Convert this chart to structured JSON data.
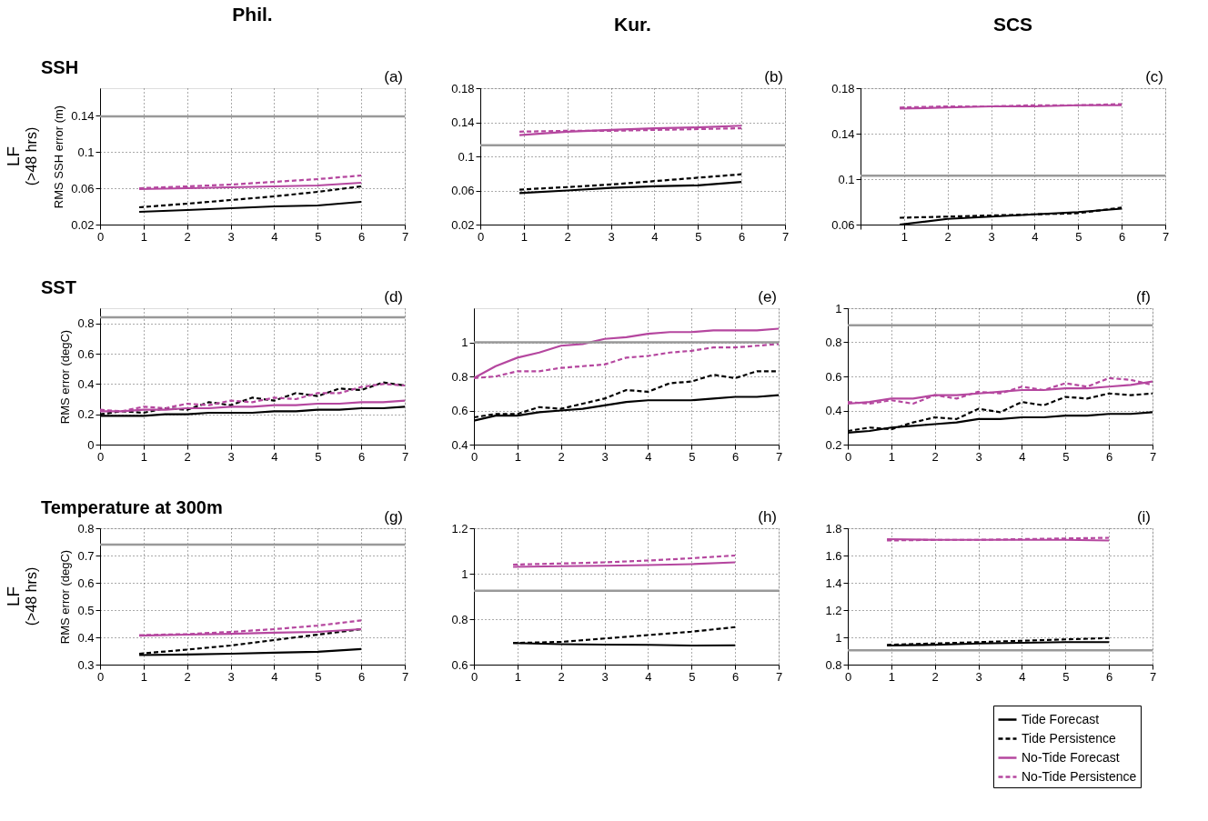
{
  "chart_data": [
    {
      "type": "line",
      "title": "Phil.",
      "subtitle": "SSH",
      "ylabel": "RMS SSH error (m)",
      "annotations": [
        "(a)",
        "LF",
        "(>48 hrs)"
      ],
      "x": [
        0.9,
        2,
        3,
        4,
        5,
        6
      ],
      "xlim": [
        0,
        7
      ],
      "xticks": [
        0,
        1,
        2,
        3,
        4,
        5,
        6,
        7
      ],
      "ylim": [
        0.02,
        0.17
      ],
      "yticks": [
        0.02,
        0.06,
        0.1,
        0.14
      ],
      "grid": true,
      "ref_lines": [
        {
          "axis": "y",
          "value": 0.139,
          "color": "#999999"
        }
      ],
      "series": [
        {
          "color": "#000000",
          "line_style": "solid",
          "values": [
            0.034,
            0.036,
            0.038,
            0.04,
            0.041,
            0.045
          ]
        },
        {
          "color": "#000000",
          "line_style": "dashed",
          "values": [
            0.039,
            0.043,
            0.047,
            0.051,
            0.056,
            0.062
          ]
        },
        {
          "color": "#b5479f",
          "line_style": "solid",
          "values": [
            0.059,
            0.06,
            0.061,
            0.062,
            0.063,
            0.066
          ]
        },
        {
          "color": "#b5479f",
          "line_style": "dashed",
          "values": [
            0.06,
            0.062,
            0.064,
            0.067,
            0.07,
            0.074
          ]
        }
      ]
    },
    {
      "type": "line",
      "title": "Kur.",
      "annotations": [
        "(b)"
      ],
      "x": [
        0.9,
        2,
        3,
        4,
        5,
        6
      ],
      "xlim": [
        0,
        7
      ],
      "xticks": [
        0,
        1,
        2,
        3,
        4,
        5,
        6,
        7
      ],
      "ylim": [
        0.02,
        0.18
      ],
      "yticks": [
        0.02,
        0.06,
        0.1,
        0.14,
        0.18
      ],
      "grid": true,
      "ref_lines": [
        {
          "axis": "y",
          "value": 0.113,
          "color": "#999999"
        }
      ],
      "series": [
        {
          "color": "#000000",
          "line_style": "solid",
          "values": [
            0.057,
            0.06,
            0.063,
            0.065,
            0.066,
            0.07
          ]
        },
        {
          "color": "#000000",
          "line_style": "dashed",
          "values": [
            0.061,
            0.064,
            0.067,
            0.071,
            0.075,
            0.079
          ]
        },
        {
          "color": "#b5479f",
          "line_style": "solid",
          "values": [
            0.125,
            0.129,
            0.131,
            0.133,
            0.134,
            0.136
          ]
        },
        {
          "color": "#b5479f",
          "line_style": "dashed",
          "values": [
            0.129,
            0.13,
            0.13,
            0.131,
            0.132,
            0.133
          ]
        }
      ]
    },
    {
      "type": "line",
      "title": "SCS",
      "annotations": [
        "(c)"
      ],
      "x": [
        0.9,
        2,
        3,
        4,
        5,
        6
      ],
      "xlim": [
        0,
        7
      ],
      "xticks": [
        {
          "value": 0,
          "label": null
        },
        1,
        2,
        3,
        4,
        5,
        6,
        7
      ],
      "ylim": [
        0.06,
        0.18
      ],
      "yticks": [
        0.06,
        0.1,
        0.14,
        0.18
      ],
      "grid": true,
      "ref_lines": [
        {
          "axis": "y",
          "value": 0.103,
          "color": "#999999"
        }
      ],
      "series": [
        {
          "color": "#000000",
          "line_style": "solid",
          "values": [
            0.06,
            0.065,
            0.067,
            0.069,
            0.071,
            0.074
          ]
        },
        {
          "color": "#000000",
          "line_style": "dashed",
          "values": [
            0.066,
            0.067,
            0.068,
            0.069,
            0.07,
            0.075
          ]
        },
        {
          "color": "#b5479f",
          "line_style": "solid",
          "values": [
            0.162,
            0.163,
            0.164,
            0.164,
            0.165,
            0.165
          ]
        },
        {
          "color": "#b5479f",
          "line_style": "dashed",
          "values": [
            0.163,
            0.164,
            0.164,
            0.165,
            0.165,
            0.166
          ]
        }
      ]
    },
    {
      "type": "line",
      "subtitle": "SST",
      "ylabel": "RMS error (degC)",
      "annotations": [
        "(d)"
      ],
      "x": [
        0,
        0.5,
        1,
        1.5,
        2,
        2.5,
        3,
        3.5,
        4,
        4.5,
        5,
        5.5,
        6,
        6.5,
        7
      ],
      "xlim": [
        0,
        7
      ],
      "xticks": [
        0,
        1,
        2,
        3,
        4,
        5,
        6,
        7
      ],
      "ylim": [
        0,
        0.9
      ],
      "yticks": [
        0,
        0.2,
        0.4,
        0.6,
        0.8
      ],
      "grid": true,
      "ref_lines": [
        {
          "axis": "y",
          "value": 0.84,
          "color": "#999999"
        }
      ],
      "series": [
        {
          "color": "#000000",
          "line_style": "solid",
          "values": [
            0.19,
            0.19,
            0.19,
            0.2,
            0.2,
            0.21,
            0.21,
            0.21,
            0.22,
            0.22,
            0.23,
            0.23,
            0.24,
            0.24,
            0.25
          ]
        },
        {
          "color": "#000000",
          "line_style": "dashed",
          "values": [
            0.2,
            0.22,
            0.21,
            0.24,
            0.23,
            0.28,
            0.26,
            0.31,
            0.29,
            0.34,
            0.32,
            0.37,
            0.36,
            0.41,
            0.39
          ]
        },
        {
          "color": "#b5479f",
          "line_style": "solid",
          "values": [
            0.22,
            0.22,
            0.23,
            0.23,
            0.24,
            0.24,
            0.25,
            0.25,
            0.26,
            0.26,
            0.27,
            0.27,
            0.28,
            0.28,
            0.29
          ]
        },
        {
          "color": "#b5479f",
          "line_style": "dashed",
          "values": [
            0.23,
            0.22,
            0.25,
            0.24,
            0.27,
            0.26,
            0.29,
            0.28,
            0.31,
            0.3,
            0.34,
            0.34,
            0.38,
            0.4,
            0.39
          ]
        }
      ]
    },
    {
      "type": "line",
      "annotations": [
        "(e)"
      ],
      "x": [
        0,
        0.5,
        1,
        1.5,
        2,
        2.5,
        3,
        3.5,
        4,
        4.5,
        5,
        5.5,
        6,
        6.5,
        7
      ],
      "xlim": [
        0,
        7
      ],
      "xticks": [
        0,
        1,
        2,
        3,
        4,
        5,
        6,
        7
      ],
      "ylim": [
        0.4,
        1.2
      ],
      "yticks": [
        0.4,
        0.6,
        0.8,
        1
      ],
      "grid": true,
      "ref_lines": [
        {
          "axis": "y",
          "value": 1.0,
          "color": "#999999"
        }
      ],
      "series": [
        {
          "color": "#000000",
          "line_style": "solid",
          "values": [
            0.54,
            0.57,
            0.57,
            0.59,
            0.6,
            0.61,
            0.63,
            0.65,
            0.66,
            0.66,
            0.66,
            0.67,
            0.68,
            0.68,
            0.69
          ]
        },
        {
          "color": "#000000",
          "line_style": "dashed",
          "values": [
            0.56,
            0.58,
            0.58,
            0.62,
            0.61,
            0.64,
            0.67,
            0.72,
            0.71,
            0.76,
            0.77,
            0.81,
            0.79,
            0.83,
            0.83
          ]
        },
        {
          "color": "#b5479f",
          "line_style": "solid",
          "values": [
            0.79,
            0.86,
            0.91,
            0.94,
            0.98,
            0.99,
            1.02,
            1.03,
            1.05,
            1.06,
            1.06,
            1.07,
            1.07,
            1.07,
            1.08
          ]
        },
        {
          "color": "#b5479f",
          "line_style": "dashed",
          "values": [
            0.79,
            0.8,
            0.83,
            0.83,
            0.85,
            0.86,
            0.87,
            0.91,
            0.92,
            0.94,
            0.95,
            0.97,
            0.97,
            0.98,
            0.99
          ]
        }
      ]
    },
    {
      "type": "line",
      "annotations": [
        "(f)"
      ],
      "x": [
        0,
        0.5,
        1,
        1.5,
        2,
        2.5,
        3,
        3.5,
        4,
        4.5,
        5,
        5.5,
        6,
        6.5,
        7
      ],
      "xlim": [
        0,
        7
      ],
      "xticks": [
        0,
        1,
        2,
        3,
        4,
        5,
        6,
        7
      ],
      "ylim": [
        0.2,
        1
      ],
      "yticks": [
        0.2,
        0.4,
        0.6,
        0.8,
        1
      ],
      "grid": true,
      "ref_lines": [
        {
          "axis": "y",
          "value": 0.9,
          "color": "#999999"
        }
      ],
      "series": [
        {
          "color": "#000000",
          "line_style": "solid",
          "values": [
            0.27,
            0.28,
            0.3,
            0.31,
            0.32,
            0.33,
            0.35,
            0.35,
            0.36,
            0.36,
            0.37,
            0.37,
            0.38,
            0.38,
            0.39
          ]
        },
        {
          "color": "#000000",
          "line_style": "dashed",
          "values": [
            0.28,
            0.3,
            0.29,
            0.33,
            0.36,
            0.35,
            0.41,
            0.39,
            0.45,
            0.43,
            0.48,
            0.47,
            0.5,
            0.49,
            0.5
          ]
        },
        {
          "color": "#b5479f",
          "line_style": "solid",
          "values": [
            0.44,
            0.45,
            0.47,
            0.47,
            0.49,
            0.49,
            0.5,
            0.51,
            0.52,
            0.52,
            0.53,
            0.53,
            0.54,
            0.55,
            0.57
          ]
        },
        {
          "color": "#b5479f",
          "line_style": "dashed",
          "values": [
            0.45,
            0.44,
            0.46,
            0.44,
            0.49,
            0.47,
            0.51,
            0.5,
            0.54,
            0.52,
            0.56,
            0.54,
            0.59,
            0.58,
            0.55
          ]
        }
      ]
    },
    {
      "type": "line",
      "subtitle": "Temperature at 300m",
      "ylabel": "RMS error (degC)",
      "annotations": [
        "(g)",
        "LF",
        "(>48 hrs)"
      ],
      "x": [
        0.9,
        2,
        3,
        4,
        5,
        6
      ],
      "xlim": [
        0,
        7
      ],
      "xticks": [
        0,
        1,
        2,
        3,
        4,
        5,
        6,
        7
      ],
      "ylim": [
        0.3,
        0.8
      ],
      "yticks": [
        0.3,
        0.4,
        0.5,
        0.6,
        0.7,
        0.8
      ],
      "grid": true,
      "ref_lines": [
        {
          "axis": "y",
          "value": 0.74,
          "color": "#999999"
        }
      ],
      "series": [
        {
          "color": "#000000",
          "line_style": "solid",
          "values": [
            0.335,
            0.337,
            0.34,
            0.344,
            0.347,
            0.357
          ]
        },
        {
          "color": "#000000",
          "line_style": "dashed",
          "values": [
            0.34,
            0.355,
            0.37,
            0.39,
            0.41,
            0.43
          ]
        },
        {
          "color": "#b5479f",
          "line_style": "solid",
          "values": [
            0.406,
            0.41,
            0.413,
            0.417,
            0.42,
            0.43
          ]
        },
        {
          "color": "#b5479f",
          "line_style": "dashed",
          "values": [
            0.408,
            0.412,
            0.42,
            0.43,
            0.443,
            0.462
          ]
        }
      ]
    },
    {
      "type": "line",
      "annotations": [
        "(h)"
      ],
      "x": [
        0.9,
        2,
        3,
        4,
        5,
        6
      ],
      "xlim": [
        0,
        7
      ],
      "xticks": [
        0,
        1,
        2,
        3,
        4,
        5,
        6,
        7
      ],
      "ylim": [
        0.6,
        1.2
      ],
      "yticks": [
        0.6,
        0.8,
        1,
        1.2
      ],
      "grid": true,
      "ref_lines": [
        {
          "axis": "y",
          "value": 0.925,
          "color": "#999999"
        }
      ],
      "series": [
        {
          "color": "#000000",
          "line_style": "solid",
          "values": [
            0.695,
            0.69,
            0.688,
            0.687,
            0.684,
            0.685
          ]
        },
        {
          "color": "#000000",
          "line_style": "dashed",
          "values": [
            0.695,
            0.7,
            0.715,
            0.73,
            0.745,
            0.765
          ]
        },
        {
          "color": "#b5479f",
          "line_style": "solid",
          "values": [
            1.03,
            1.033,
            1.035,
            1.038,
            1.042,
            1.05
          ]
        },
        {
          "color": "#b5479f",
          "line_style": "dashed",
          "values": [
            1.04,
            1.045,
            1.05,
            1.058,
            1.068,
            1.08
          ]
        }
      ]
    },
    {
      "type": "line",
      "annotations": [
        "(i)"
      ],
      "x": [
        0.9,
        2,
        3,
        4,
        5,
        6
      ],
      "xlim": [
        0,
        7
      ],
      "xticks": [
        0,
        1,
        2,
        3,
        4,
        5,
        6,
        7
      ],
      "ylim": [
        0.8,
        1.8
      ],
      "yticks": [
        0.8,
        1,
        1.2,
        1.4,
        1.6,
        1.8
      ],
      "grid": true,
      "legend": "bottom right",
      "ref_lines": [
        {
          "axis": "y",
          "value": 0.905,
          "color": "#999999"
        }
      ],
      "series": [
        {
          "name": "Tide Forecast",
          "color": "#000000",
          "line_style": "solid",
          "values": [
            0.94,
            0.945,
            0.955,
            0.96,
            0.965,
            0.965
          ]
        },
        {
          "name": "Tide Persistence",
          "color": "#000000",
          "line_style": "dashed",
          "values": [
            0.945,
            0.955,
            0.965,
            0.975,
            0.985,
            0.995
          ]
        },
        {
          "name": "No-Tide Forecast",
          "color": "#b5479f",
          "line_style": "solid",
          "values": [
            1.72,
            1.715,
            1.715,
            1.715,
            1.715,
            1.71
          ]
        },
        {
          "name": "No-Tide Persistence",
          "color": "#b5479f",
          "line_style": "dashed",
          "values": [
            1.71,
            1.715,
            1.715,
            1.72,
            1.725,
            1.73
          ]
        }
      ]
    }
  ]
}
